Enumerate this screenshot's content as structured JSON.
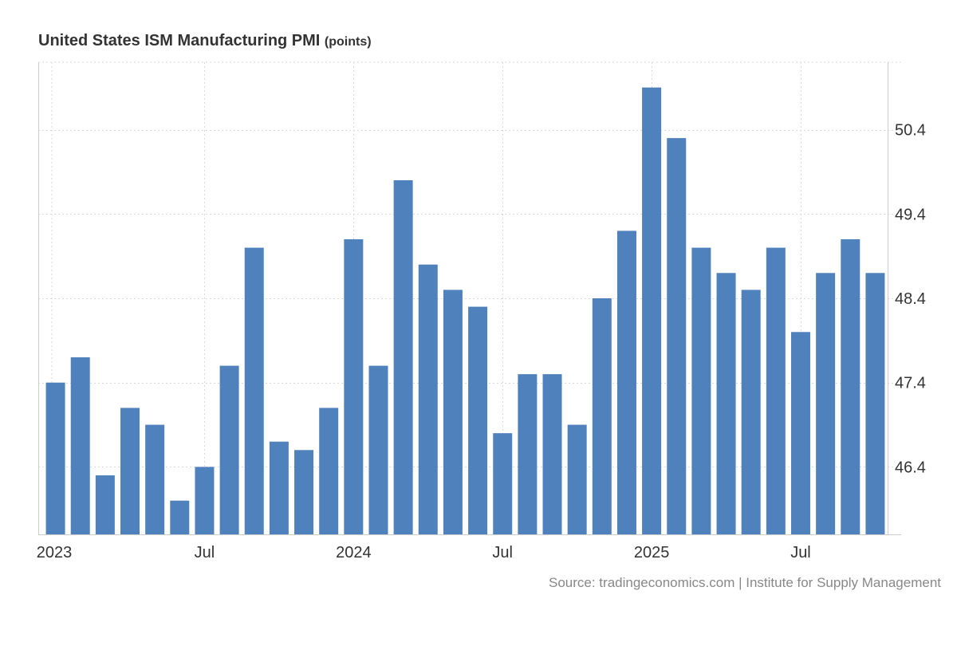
{
  "title": "United States ISM Manufacturing PMI",
  "unit_label": "(points)",
  "source": "Source: tradingeconomics.com | Institute for Supply Management",
  "colors": {
    "bar": "#4f81bd",
    "grid": "#d9d9d9",
    "axis": "#cccccc",
    "text": "#333333",
    "source_text": "#888888"
  },
  "chart_data": {
    "type": "bar",
    "title": "United States ISM Manufacturing PMI (points)",
    "xlabel": "",
    "ylabel": "points",
    "ylim": [
      45.6,
      51.2
    ],
    "y_ticks": [
      46.4,
      47.4,
      48.4,
      49.4,
      50.4
    ],
    "y_tick_labels": [
      "46.4",
      "47.4",
      "48.4",
      "49.4",
      "50.4"
    ],
    "x_tick_labels": [
      {
        "label": "2023",
        "index": 0
      },
      {
        "label": "Jul",
        "index": 6
      },
      {
        "label": "2024",
        "index": 12
      },
      {
        "label": "Jul",
        "index": 18
      },
      {
        "label": "2025",
        "index": 24
      },
      {
        "label": "Jul",
        "index": 30
      }
    ],
    "categories": [
      "Jan 2023",
      "Feb 2023",
      "Mar 2023",
      "Apr 2023",
      "May 2023",
      "Jun 2023",
      "Jul 2023",
      "Aug 2023",
      "Sep 2023",
      "Oct 2023",
      "Nov 2023",
      "Dec 2023",
      "Jan 2024",
      "Feb 2024",
      "Mar 2024",
      "Apr 2024",
      "May 2024",
      "Jun 2024",
      "Jul 2024",
      "Aug 2024",
      "Sep 2024",
      "Oct 2024",
      "Nov 2024",
      "Dec 2024",
      "Jan 2025",
      "Feb 2025",
      "Mar 2025",
      "Apr 2025",
      "May 2025",
      "Jun 2025",
      "Jul 2025",
      "Aug 2025",
      "Sep 2025",
      "Oct 2025"
    ],
    "values": [
      47.4,
      47.7,
      46.3,
      47.1,
      46.9,
      46.0,
      46.4,
      47.6,
      49.0,
      46.7,
      46.6,
      47.1,
      49.1,
      47.6,
      49.8,
      48.8,
      48.5,
      48.3,
      46.8,
      47.5,
      47.5,
      46.9,
      48.4,
      49.2,
      50.9,
      50.3,
      49.0,
      48.7,
      48.5,
      49.0,
      48.0,
      48.7,
      49.1,
      48.7
    ],
    "grid": true
  }
}
